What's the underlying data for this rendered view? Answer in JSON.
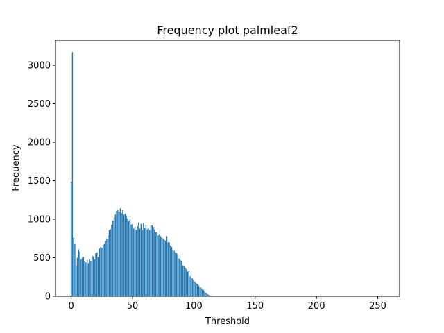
{
  "chart_data": {
    "type": "bar",
    "title": "Frequency plot palmleaf2",
    "xlabel": "Threshold",
    "ylabel": "Frequency",
    "xlim": [
      -12.8,
      267.8
    ],
    "ylim": [
      0,
      3325
    ],
    "xticks": [
      0,
      50,
      100,
      150,
      200,
      250
    ],
    "yticks": [
      0,
      500,
      1000,
      1500,
      2000,
      2500,
      3000
    ],
    "grid": false,
    "bar_color": "#1f77b4",
    "x": [
      0,
      1,
      2,
      3,
      4,
      5,
      6,
      7,
      8,
      9,
      10,
      11,
      12,
      13,
      14,
      15,
      16,
      17,
      18,
      19,
      20,
      21,
      22,
      23,
      24,
      25,
      26,
      27,
      28,
      29,
      30,
      31,
      32,
      33,
      34,
      35,
      36,
      37,
      38,
      39,
      40,
      41,
      42,
      43,
      44,
      45,
      46,
      47,
      48,
      49,
      50,
      51,
      52,
      53,
      54,
      55,
      56,
      57,
      58,
      59,
      60,
      61,
      62,
      63,
      64,
      65,
      66,
      67,
      68,
      69,
      70,
      71,
      72,
      73,
      74,
      75,
      76,
      77,
      78,
      79,
      80,
      81,
      82,
      83,
      84,
      85,
      86,
      87,
      88,
      89,
      90,
      91,
      92,
      93,
      94,
      95,
      96,
      97,
      98,
      99,
      100,
      101,
      102,
      103,
      104,
      105,
      106,
      107,
      108,
      109,
      110,
      111,
      112,
      113,
      114,
      115,
      116,
      117,
      118,
      119,
      120
    ],
    "values": [
      1490,
      3170,
      760,
      680,
      390,
      500,
      610,
      580,
      480,
      500,
      510,
      460,
      440,
      470,
      430,
      480,
      460,
      530,
      520,
      480,
      560,
      570,
      510,
      620,
      640,
      630,
      670,
      680,
      720,
      750,
      790,
      860,
      870,
      930,
      980,
      1020,
      1060,
      1110,
      1120,
      1100,
      1140,
      1080,
      1120,
      1060,
      1070,
      1040,
      1010,
      980,
      1000,
      930,
      940,
      880,
      900,
      860,
      910,
      960,
      880,
      940,
      860,
      950,
      890,
      930,
      870,
      880,
      860,
      920,
      920,
      900,
      870,
      830,
      840,
      790,
      800,
      780,
      760,
      750,
      730,
      720,
      780,
      700,
      700,
      660,
      640,
      600,
      590,
      570,
      560,
      540,
      490,
      470,
      460,
      400,
      390,
      370,
      350,
      320,
      330,
      260,
      240,
      230,
      210,
      190,
      170,
      160,
      140,
      120,
      110,
      90,
      80,
      60,
      45,
      30,
      20,
      12,
      7,
      4,
      2,
      1,
      1,
      0,
      0
    ],
    "x_ticklabels": [
      "0",
      "50",
      "100",
      "150",
      "200",
      "250"
    ],
    "y_ticklabels": [
      "0",
      "500",
      "1000",
      "1500",
      "2000",
      "2500",
      "3000"
    ]
  }
}
